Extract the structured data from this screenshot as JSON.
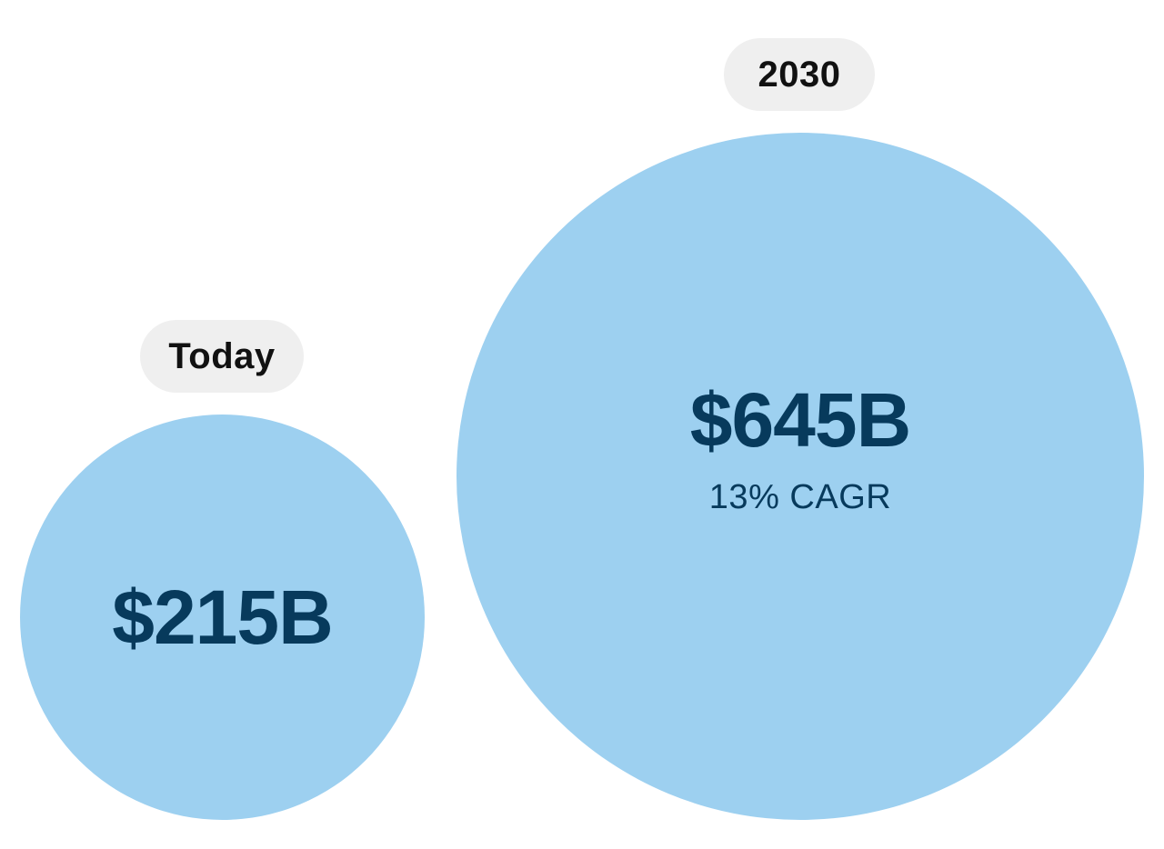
{
  "chart_data": {
    "type": "bubble",
    "categories": [
      "Today",
      "2030"
    ],
    "values": [
      215,
      645
    ],
    "value_labels": [
      "$215B",
      "$645B"
    ],
    "unit": "$B",
    "annotations": [
      "13% CAGR"
    ],
    "bubble_color": "#9dd0f0",
    "text_color": "#073a5c",
    "label_bg_color": "#efefef"
  }
}
